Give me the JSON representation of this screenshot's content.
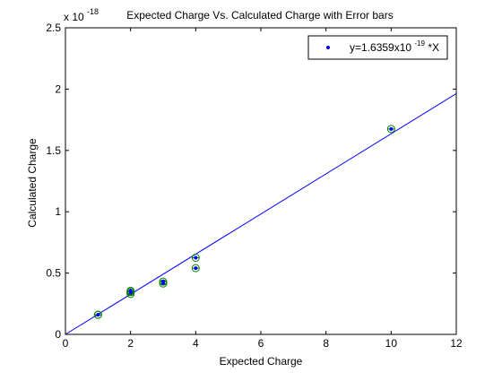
{
  "chart_data": {
    "type": "scatter",
    "title": "Expected Charge Vs. Calculated Charge with Error bars",
    "xlabel": "Expected Charge",
    "ylabel": "Calculated Charge",
    "y_scale_label": "x 10",
    "y_scale_exponent": "-18",
    "xlim": [
      0,
      12
    ],
    "ylim": [
      0,
      2.5
    ],
    "x_ticks": [
      0,
      2,
      4,
      6,
      8,
      10,
      12
    ],
    "y_ticks": [
      0,
      0.5,
      1,
      1.5,
      2,
      2.5
    ],
    "grid": false,
    "legend_position": "top-right",
    "series": [
      {
        "name": "y=1.6359x10^-19*X",
        "marker": "dot",
        "color": "#0000ff",
        "x": [
          1,
          1,
          2,
          2,
          2,
          3,
          3,
          4,
          4,
          10
        ],
        "y": [
          0.16,
          0.16,
          0.33,
          0.345,
          0.355,
          0.415,
          0.43,
          0.54,
          0.625,
          1.675
        ]
      }
    ],
    "fit_line": {
      "slope": 0.16359,
      "intercept": 0,
      "color": "#0000ff"
    },
    "error_marker_color": "#008000"
  }
}
